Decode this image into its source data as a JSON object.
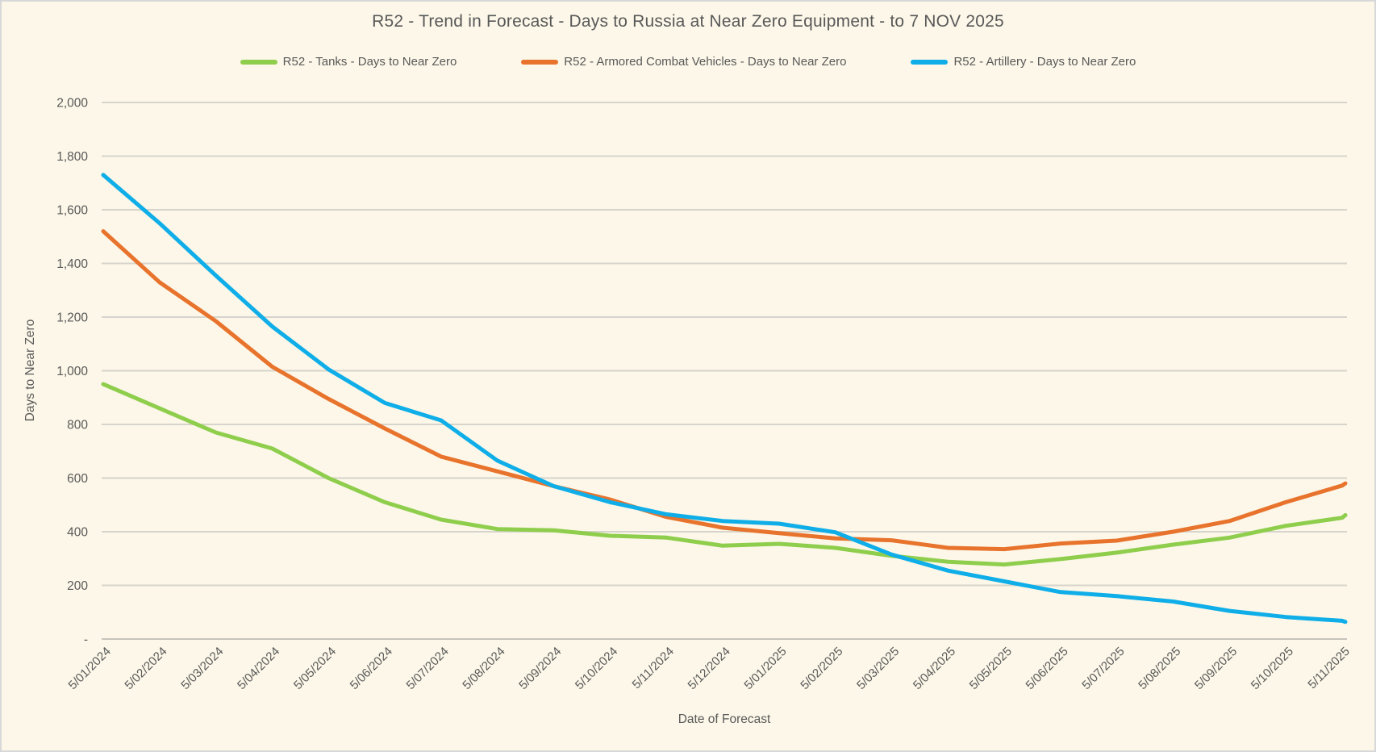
{
  "chart_data": {
    "type": "line",
    "title": "R52 - Trend in Forecast - Days to Russia at Near Zero Equipment - to 7 NOV 2025",
    "xlabel": "Date of Forecast",
    "ylabel": "Days to Near Zero",
    "ylim": [
      0,
      2000
    ],
    "ytick_step": 200,
    "ytick_zero_label": "-",
    "grid": "horizontal",
    "legend_position": "top",
    "background_color": "#FCF7E8",
    "gridline_color": "#D6D4CC",
    "axisline_color": "#C6C4BC",
    "text_color": "#595959",
    "x_dates": [
      "5/01/2024",
      "5/02/2024",
      "5/03/2024",
      "5/04/2024",
      "5/05/2024",
      "5/06/2024",
      "5/07/2024",
      "5/08/2024",
      "5/09/2024",
      "5/10/2024",
      "5/11/2024",
      "5/12/2024",
      "5/01/2025",
      "5/02/2025",
      "5/03/2025",
      "5/04/2025",
      "5/05/2025",
      "5/06/2025",
      "5/07/2025",
      "5/08/2025",
      "5/09/2025",
      "5/10/2025",
      "5/11/2025",
      "7/11/2025"
    ],
    "x_tick_count": 23,
    "series": [
      {
        "name": "R52 - Tanks - Days to Near Zero",
        "color": "#8FCE4D",
        "values": [
          950,
          860,
          770,
          710,
          600,
          510,
          445,
          410,
          405,
          385,
          378,
          348,
          355,
          340,
          310,
          288,
          278,
          298,
          322,
          352,
          378,
          422,
          452,
          462
        ]
      },
      {
        "name": "R52 - Armored Combat Vehicles - Days to Near Zero",
        "color": "#E8732C",
        "values": [
          1520,
          1330,
          1185,
          1015,
          895,
          785,
          680,
          625,
          570,
          520,
          455,
          415,
          395,
          375,
          368,
          340,
          335,
          356,
          367,
          400,
          440,
          510,
          572,
          580
        ]
      },
      {
        "name": "R52 - Artillery - Days to Near Zero",
        "color": "#0FAEE8",
        "values": [
          1730,
          1550,
          1355,
          1165,
          1005,
          880,
          815,
          665,
          570,
          510,
          465,
          440,
          430,
          398,
          315,
          255,
          215,
          175,
          160,
          140,
          105,
          82,
          68,
          64
        ]
      }
    ]
  }
}
